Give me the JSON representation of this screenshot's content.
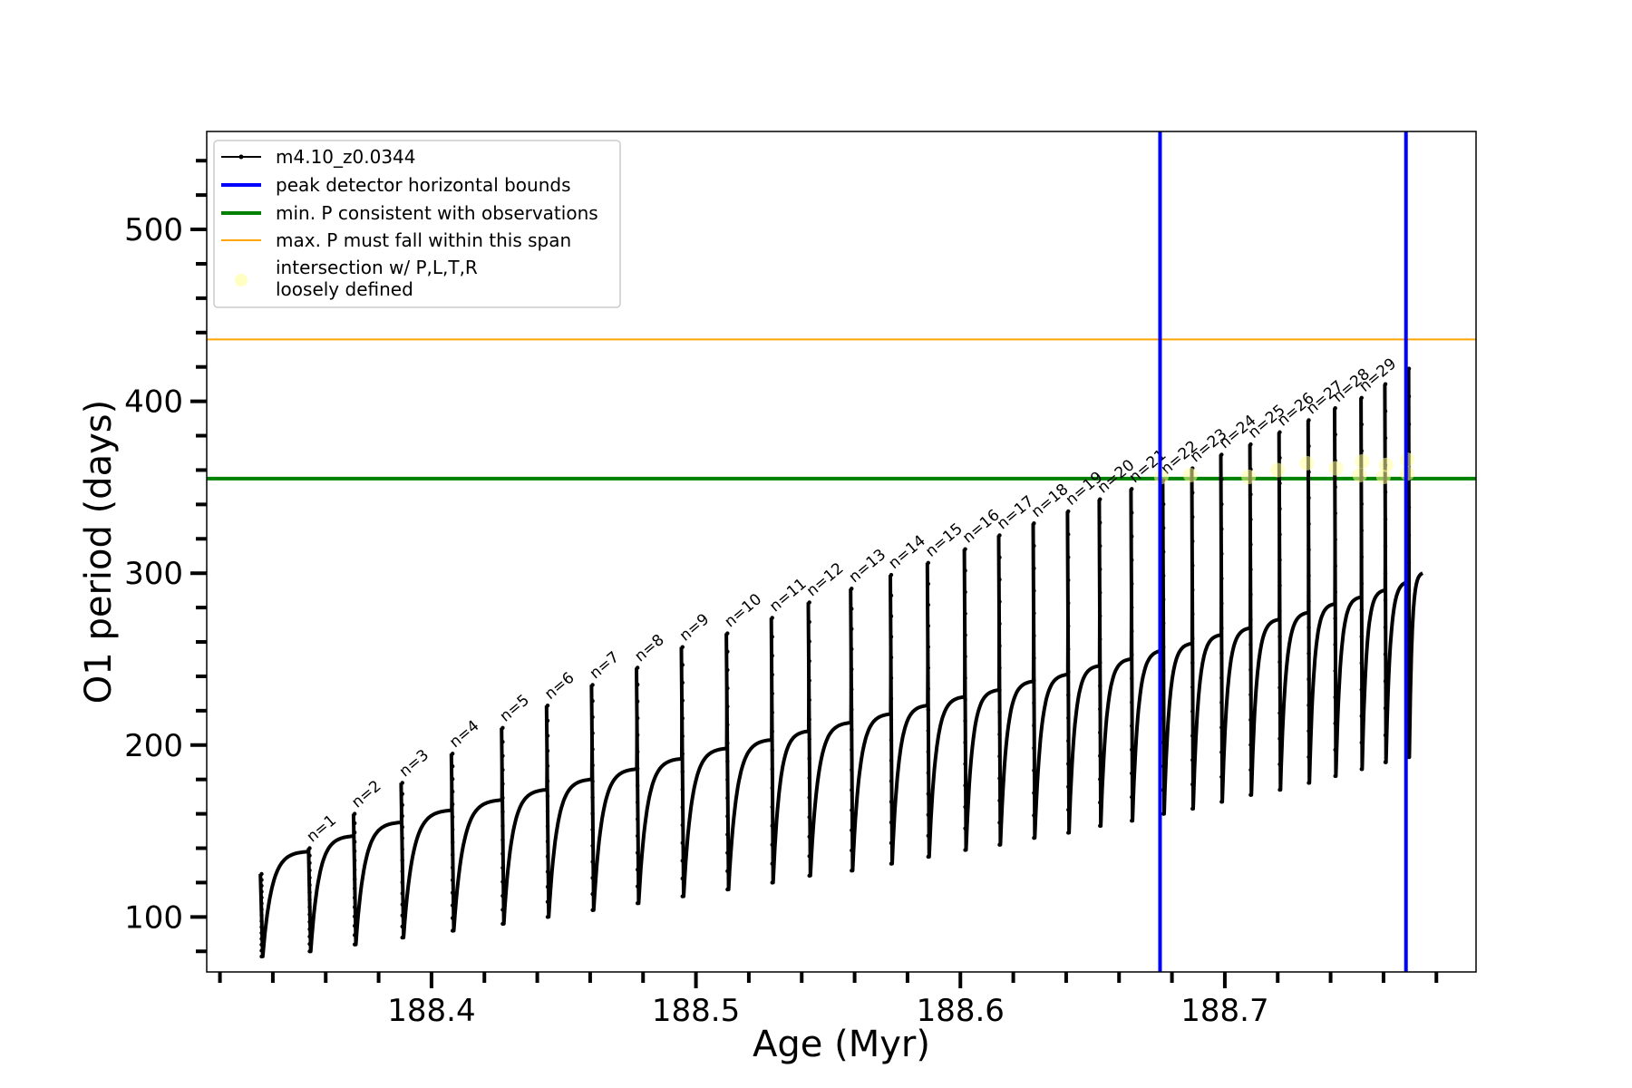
{
  "chart_data": {
    "type": "line",
    "title": "",
    "xlabel": "Age (Myr)",
    "ylabel": "O1 period (days)",
    "xlim": [
      188.315,
      188.795
    ],
    "ylim": [
      68,
      557
    ],
    "x_ticks_major": [
      188.4,
      188.5,
      188.6,
      188.7
    ],
    "x_tick_labels": [
      "188.4",
      "188.5",
      "188.6",
      "188.7"
    ],
    "x_ticks_minor_step": 0.02,
    "y_ticks_major": [
      100,
      200,
      300,
      400,
      500
    ],
    "y_tick_labels": [
      "100",
      "200",
      "300",
      "400",
      "500"
    ],
    "y_ticks_minor_step": 20,
    "grid": false,
    "legend_position": "top-left",
    "series": [
      {
        "name": "m4.10_z0.0344",
        "color": "#000000",
        "pulses": [
          {
            "x": 188.3353,
            "min": 77,
            "end": 138,
            "spike": 125
          },
          {
            "x": 188.3535,
            "min": 80,
            "end": 147,
            "spike": 140
          },
          {
            "x": 188.3705,
            "min": 84,
            "end": 155,
            "spike": 160
          },
          {
            "x": 188.3885,
            "min": 88,
            "end": 162,
            "spike": 178
          },
          {
            "x": 188.4075,
            "min": 92,
            "end": 168,
            "spike": 195
          },
          {
            "x": 188.4265,
            "min": 96,
            "end": 174,
            "spike": 210
          },
          {
            "x": 188.4435,
            "min": 100,
            "end": 180,
            "spike": 223
          },
          {
            "x": 188.4605,
            "min": 104,
            "end": 186,
            "spike": 235
          },
          {
            "x": 188.4775,
            "min": 108,
            "end": 192,
            "spike": 245
          },
          {
            "x": 188.4945,
            "min": 112,
            "end": 198,
            "spike": 257
          },
          {
            "x": 188.5115,
            "min": 116,
            "end": 203,
            "spike": 265
          },
          {
            "x": 188.5285,
            "min": 120,
            "end": 208,
            "spike": 274
          },
          {
            "x": 188.5425,
            "min": 124,
            "end": 213,
            "spike": 283
          },
          {
            "x": 188.5585,
            "min": 127,
            "end": 218,
            "spike": 291
          },
          {
            "x": 188.5735,
            "min": 131,
            "end": 223,
            "spike": 299
          },
          {
            "x": 188.5875,
            "min": 135,
            "end": 228,
            "spike": 306
          },
          {
            "x": 188.6015,
            "min": 139,
            "end": 232,
            "spike": 314
          },
          {
            "x": 188.6145,
            "min": 142,
            "end": 237,
            "spike": 322
          },
          {
            "x": 188.6275,
            "min": 146,
            "end": 241,
            "spike": 329
          },
          {
            "x": 188.6405,
            "min": 149,
            "end": 246,
            "spike": 336
          },
          {
            "x": 188.6525,
            "min": 153,
            "end": 250,
            "spike": 343
          },
          {
            "x": 188.6645,
            "min": 156,
            "end": 255,
            "spike": 349
          },
          {
            "x": 188.6765,
            "min": 160,
            "end": 259,
            "spike": 354
          },
          {
            "x": 188.6875,
            "min": 163,
            "end": 264,
            "spike": 361
          },
          {
            "x": 188.6985,
            "min": 167,
            "end": 268,
            "spike": 369
          },
          {
            "x": 188.7095,
            "min": 171,
            "end": 273,
            "spike": 375
          },
          {
            "x": 188.7205,
            "min": 174,
            "end": 277,
            "spike": 382
          },
          {
            "x": 188.7315,
            "min": 178,
            "end": 282,
            "spike": 389
          },
          {
            "x": 188.7415,
            "min": 182,
            "end": 286,
            "spike": 396
          },
          {
            "x": 188.7515,
            "min": 186,
            "end": 290,
            "spike": 402
          },
          {
            "x": 188.7605,
            "min": 190,
            "end": 295,
            "spike": 410
          },
          {
            "x": 188.7695,
            "min": 193,
            "end": 300,
            "spike": 419
          }
        ]
      },
      {
        "name": "peak detector horizontal bounds",
        "color": "#0000ff",
        "x_lines": [
          188.6755,
          188.7685
        ]
      },
      {
        "name": "min. P consistent with observations",
        "color": "#008000",
        "y_line": 355
      },
      {
        "name": "max. P must fall within this span",
        "color": "#ffa500",
        "y_line": 436
      },
      {
        "name": "intersection w/ P,L,T,R\nloosely defined",
        "color": "#ffff99",
        "points": [
          {
            "x": 188.676,
            "y": 356
          },
          {
            "x": 188.687,
            "y": 357
          },
          {
            "x": 188.709,
            "y": 356
          },
          {
            "x": 188.72,
            "y": 360
          },
          {
            "x": 188.731,
            "y": 364
          },
          {
            "x": 188.742,
            "y": 361
          },
          {
            "x": 188.751,
            "y": 357
          },
          {
            "x": 188.752,
            "y": 365
          },
          {
            "x": 188.76,
            "y": 356
          },
          {
            "x": 188.761,
            "y": 363
          },
          {
            "x": 188.769,
            "y": 358
          },
          {
            "x": 188.769,
            "y": 366
          }
        ]
      }
    ],
    "annotations": [
      "n=1",
      "n=2",
      "n=3",
      "n=4",
      "n=5",
      "n=6",
      "n=7",
      "n=8",
      "n=9",
      "n=10",
      "n=11",
      "n=12",
      "n=13",
      "n=14",
      "n=15",
      "n=16",
      "n=17",
      "n=18",
      "n=19",
      "n=20",
      "n=21",
      "n=22",
      "n=23",
      "n=24",
      "n=25",
      "n=26",
      "n=27",
      "n=28",
      "n=29"
    ],
    "legend": {
      "entries": [
        "m4.10_z0.0344",
        "peak detector horizontal bounds",
        "min. P consistent with observations",
        "max. P must fall within this span",
        "intersection w/ P,L,T,R",
        "loosely defined"
      ]
    }
  }
}
